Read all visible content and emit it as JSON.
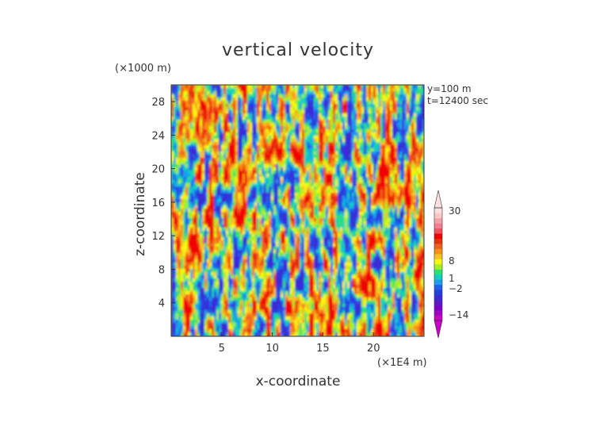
{
  "chart_data": {
    "type": "heatmap",
    "title": "vertical velocity",
    "xlabel": "x-coordinate",
    "ylabel": "z-coordinate",
    "x_unit": "(×1E4 m)",
    "y_unit": "(×1000 m)",
    "xlim": [
      0,
      25
    ],
    "ylim": [
      0,
      30
    ],
    "x_ticks": [
      5,
      10,
      15,
      20
    ],
    "y_ticks": [
      4,
      8,
      12,
      16,
      20,
      24,
      28
    ],
    "annotations": [
      "y=100  m",
      "t=12400 sec"
    ],
    "colorbar": {
      "tick_labels": [
        "30",
        "8",
        "1",
        "−2",
        "−14"
      ],
      "levels": [
        {
          "color": "#c800c8"
        },
        {
          "color": "#a000c8"
        },
        {
          "color": "#7a00d0"
        },
        {
          "color": "#5a18c8"
        },
        {
          "color": "#3a2ad8"
        },
        {
          "color": "#2040e0"
        },
        {
          "color": "#1e60f0"
        },
        {
          "color": "#18a0e8"
        },
        {
          "color": "#10d0c0"
        },
        {
          "color": "#30e070"
        },
        {
          "color": "#a8f020"
        },
        {
          "color": "#f8f810"
        },
        {
          "color": "#f8c020"
        },
        {
          "color": "#f89010"
        },
        {
          "color": "#f06020"
        },
        {
          "color": "#e83010"
        },
        {
          "color": "#f00000"
        },
        {
          "color": "#f05060"
        },
        {
          "color": "#f08090"
        },
        {
          "color": "#f4a0a8"
        },
        {
          "color": "#f8c8c8"
        },
        {
          "color": "#fce0e0"
        }
      ]
    }
  }
}
